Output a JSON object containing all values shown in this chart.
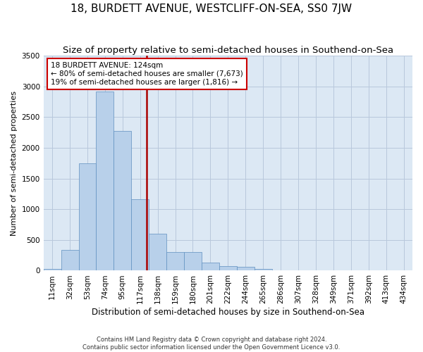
{
  "title": "18, BURDETT AVENUE, WESTCLIFF-ON-SEA, SS0 7JW",
  "subtitle": "Size of property relative to semi-detached houses in Southend-on-Sea",
  "xlabel": "Distribution of semi-detached houses by size in Southend-on-Sea",
  "ylabel": "Number of semi-detached properties",
  "footnote1": "Contains HM Land Registry data © Crown copyright and database right 2024.",
  "footnote2": "Contains public sector information licensed under the Open Government Licence v3.0.",
  "bar_values": [
    30,
    340,
    1750,
    2920,
    2280,
    1160,
    600,
    305,
    305,
    130,
    75,
    65,
    30,
    5,
    0,
    0,
    0,
    0,
    0,
    0,
    0
  ],
  "bin_labels": [
    "11sqm",
    "32sqm",
    "53sqm",
    "74sqm",
    "95sqm",
    "117sqm",
    "138sqm",
    "159sqm",
    "180sqm",
    "201sqm",
    "222sqm",
    "244sqm",
    "265sqm",
    "286sqm",
    "307sqm",
    "328sqm",
    "349sqm",
    "371sqm",
    "392sqm",
    "413sqm",
    "434sqm"
  ],
  "bar_color": "#b8d0ea",
  "bar_edge_color": "#6090c0",
  "grid_color": "#b8c8dc",
  "bg_color": "#dce8f4",
  "vline_x": 5.88,
  "vline_color": "#aa0000",
  "annotation_text": "18 BURDETT AVENUE: 124sqm\n← 80% of semi-detached houses are smaller (7,673)\n19% of semi-detached houses are larger (1,816) →",
  "annotation_box_color": "#cc0000",
  "ylim": [
    0,
    3500
  ],
  "yticks": [
    0,
    500,
    1000,
    1500,
    2000,
    2500,
    3000,
    3500
  ],
  "title_fontsize": 11,
  "subtitle_fontsize": 9.5,
  "axis_label_fontsize": 8.5,
  "ylabel_fontsize": 8,
  "tick_fontsize": 7.5,
  "annotation_fontsize": 7.5
}
